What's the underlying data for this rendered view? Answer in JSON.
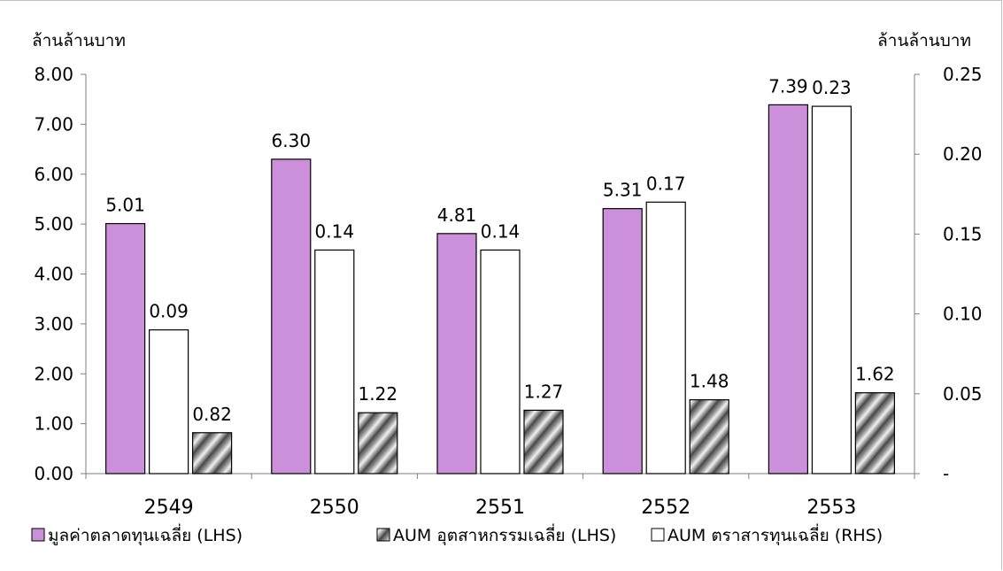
{
  "chart_data": {
    "type": "bar",
    "categories": [
      "2549",
      "2550",
      "2551",
      "2552",
      "2553"
    ],
    "series": [
      {
        "name": "มูลค่าตลาดทุนเฉลี่ย (LHS)",
        "axis": "left",
        "values": [
          5.01,
          6.3,
          4.81,
          5.31,
          7.39
        ],
        "labels": [
          "5.01",
          "6.30",
          "4.81",
          "5.31",
          "7.39"
        ],
        "color": "#cc8fd9",
        "pattern": "solid"
      },
      {
        "name": "AUM ตราสารทุนเฉลี่ย (RHS)",
        "axis": "right",
        "values": [
          0.09,
          0.14,
          0.14,
          0.17,
          0.23
        ],
        "labels": [
          "0.09",
          "0.14",
          "0.14",
          "0.17",
          "0.23"
        ],
        "color": "#ffffff",
        "pattern": "solid"
      },
      {
        "name": "AUM อุตสาหกรรมเฉลี่ย (LHS)",
        "axis": "left",
        "values": [
          0.82,
          1.22,
          1.27,
          1.48,
          1.62
        ],
        "labels": [
          "0.82",
          "1.22",
          "1.27",
          "1.48",
          "1.62"
        ],
        "color": "#808080",
        "pattern": "diagonal-hatch"
      }
    ],
    "left_axis": {
      "unit_label": "ล้านล้านบาท",
      "ylim": [
        0,
        8
      ],
      "ticks": [
        "0.00",
        "1.00",
        "2.00",
        "3.00",
        "4.00",
        "5.00",
        "6.00",
        "7.00",
        "8.00"
      ]
    },
    "right_axis": {
      "unit_label": "ล้านล้านบาท",
      "ylim": [
        0,
        0.25
      ],
      "ticks": [
        "-",
        "0.05",
        "0.10",
        "0.15",
        "0.20",
        "0.25"
      ]
    },
    "legend": {
      "placement": "bottom",
      "items": [
        "มูลค่าตลาดทุนเฉลี่ย (LHS)",
        "AUM อุตสาหกรรมเฉลี่ย (LHS)",
        "AUM ตราสารทุนเฉลี่ย (RHS)"
      ]
    },
    "grid": false
  }
}
